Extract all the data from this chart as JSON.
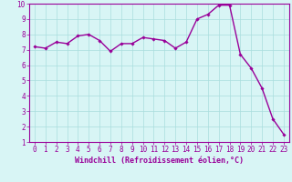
{
  "x": [
    0,
    1,
    2,
    3,
    4,
    5,
    6,
    7,
    8,
    9,
    10,
    11,
    12,
    13,
    14,
    15,
    16,
    17,
    18,
    19,
    20,
    21,
    22,
    23
  ],
  "y": [
    7.2,
    7.1,
    7.5,
    7.4,
    7.9,
    8.0,
    7.6,
    6.9,
    7.4,
    7.4,
    7.8,
    7.7,
    7.6,
    7.1,
    7.5,
    9.0,
    9.3,
    9.9,
    9.9,
    6.7,
    5.8,
    4.5,
    2.5,
    1.5
  ],
  "line_color": "#990099",
  "marker": "D",
  "marker_size": 1.8,
  "linewidth": 1.0,
  "xlabel": "Windchill (Refroidissement éolien,°C)",
  "xlabel_fontsize": 6.0,
  "xlim": [
    -0.5,
    23.5
  ],
  "ylim": [
    1,
    10
  ],
  "yticks": [
    1,
    2,
    3,
    4,
    5,
    6,
    7,
    8,
    9,
    10
  ],
  "xticks": [
    0,
    1,
    2,
    3,
    4,
    5,
    6,
    7,
    8,
    9,
    10,
    11,
    12,
    13,
    14,
    15,
    16,
    17,
    18,
    19,
    20,
    21,
    22,
    23
  ],
  "background_color": "#d8f5f5",
  "grid_color": "#aadddd",
  "tick_color": "#990099",
  "tick_fontsize": 5.5,
  "xlabel_color": "#990099"
}
